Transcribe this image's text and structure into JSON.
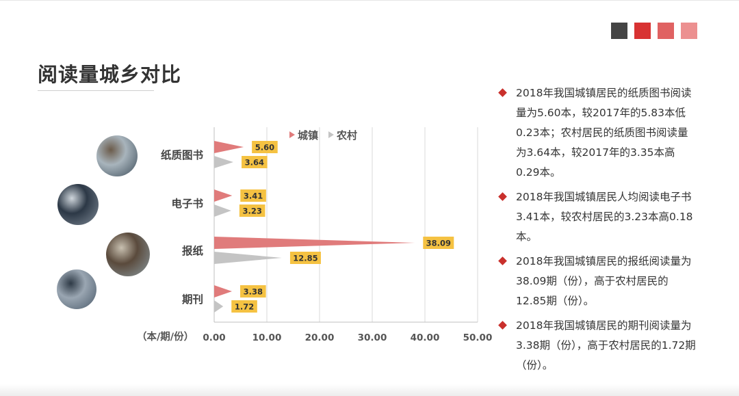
{
  "page": {
    "title": "阅读量城乡对比",
    "accent_squares": [
      "#444444",
      "#d83232",
      "#e06262",
      "#ec9090"
    ]
  },
  "thumbnails": [
    {
      "name": "paper-book-photo",
      "colors": [
        "#3d4d5a",
        "#a8b4bc",
        "#6b5b4a"
      ]
    },
    {
      "name": "ebook-photo",
      "colors": [
        "#7f8a96",
        "#2c3846",
        "#cfd6dc"
      ]
    },
    {
      "name": "newspaper-photo",
      "colors": [
        "#8a9aa0",
        "#5a4a3c",
        "#c8c0b0"
      ]
    },
    {
      "name": "magazine-photo",
      "colors": [
        "#4a5a6a",
        "#9aa6b2",
        "#2e3a46"
      ]
    }
  ],
  "chart_data": {
    "type": "bar",
    "orientation": "horizontal",
    "categories": [
      "纸质图书",
      "电子书",
      "报纸",
      "期刊"
    ],
    "series": [
      {
        "name": "城镇",
        "color": "#e07b7b",
        "values": [
          5.6,
          3.41,
          38.09,
          3.38
        ]
      },
      {
        "name": "农村",
        "color": "#c4c4c4",
        "values": [
          3.64,
          3.23,
          12.85,
          1.72
        ]
      }
    ],
    "xlabel": "（本/期/份）",
    "xlim": [
      0,
      50
    ],
    "xticks": [
      "0.00",
      "10.00",
      "20.00",
      "30.00",
      "40.00",
      "50.00"
    ],
    "grid": true,
    "legend": "top",
    "label_bg": "#f5c242"
  },
  "notes": [
    "2018年我国城镇居民的纸质图书阅读量为5.60本，较2017年的5.83本低0.23本；农村居民的纸质图书阅读量为3.64本，较2017年的3.35本高0.29本。",
    "2018年我国城镇居民人均阅读电子书3.41本，较农村居民的3.23本高0.18本。",
    "2018年我国城镇居民的报纸阅读量为38.09期（份），高于农村居民的12.85期（份）。",
    "2018年我国城镇居民的期刊阅读量为3.38期（份），高于农村居民的1.72期（份）。"
  ]
}
